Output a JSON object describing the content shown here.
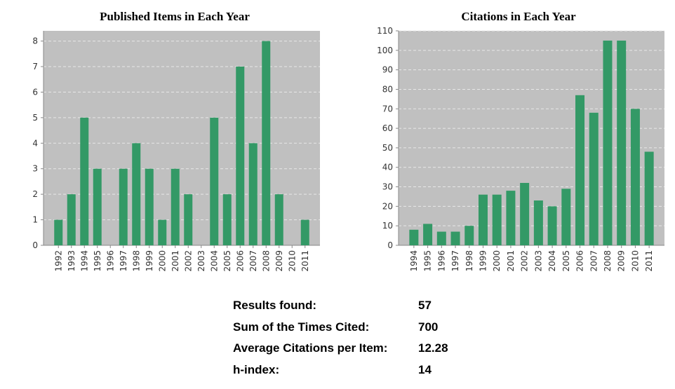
{
  "chart_data": [
    {
      "type": "bar",
      "title": "Published Items in Each Year",
      "categories": [
        "1992",
        "1993",
        "1994",
        "1995",
        "1996",
        "1997",
        "1998",
        "1999",
        "2000",
        "2001",
        "2002",
        "2003",
        "2004",
        "2005",
        "2006",
        "2007",
        "2008",
        "2009",
        "2010",
        "2011"
      ],
      "values": [
        1,
        2,
        5,
        3,
        0,
        3,
        4,
        3,
        1,
        3,
        2,
        0,
        5,
        2,
        7,
        4,
        8,
        2,
        0,
        1
      ],
      "ylim": [
        0,
        8.4
      ],
      "yticks": [
        0,
        1,
        2,
        3,
        4,
        5,
        6,
        7,
        8
      ],
      "grid": true,
      "bar_color": "#339966",
      "plot_background": "#c0c0c0"
    },
    {
      "type": "bar",
      "title": "Citations in Each Year",
      "categories": [
        "1994",
        "1995",
        "1996",
        "1997",
        "1998",
        "1999",
        "2000",
        "2001",
        "2002",
        "2003",
        "2004",
        "2005",
        "2006",
        "2007",
        "2008",
        "2009",
        "2010",
        "2011"
      ],
      "values": [
        8,
        11,
        7,
        7,
        10,
        26,
        26,
        28,
        32,
        23,
        20,
        29,
        77,
        68,
        105,
        105,
        70,
        48
      ],
      "ylim": [
        0,
        110
      ],
      "yticks": [
        0,
        10,
        20,
        30,
        40,
        50,
        60,
        70,
        80,
        90,
        100,
        110
      ],
      "grid": true,
      "bar_color": "#339966",
      "plot_background": "#c0c0c0"
    }
  ],
  "summary": [
    {
      "label": "Results found:",
      "value": "57"
    },
    {
      "label": "Sum of the Times Cited:",
      "value": "700"
    },
    {
      "label": "Average Citations per Item:",
      "value": "12.28"
    },
    {
      "label": "h-index:",
      "value": "14"
    }
  ]
}
